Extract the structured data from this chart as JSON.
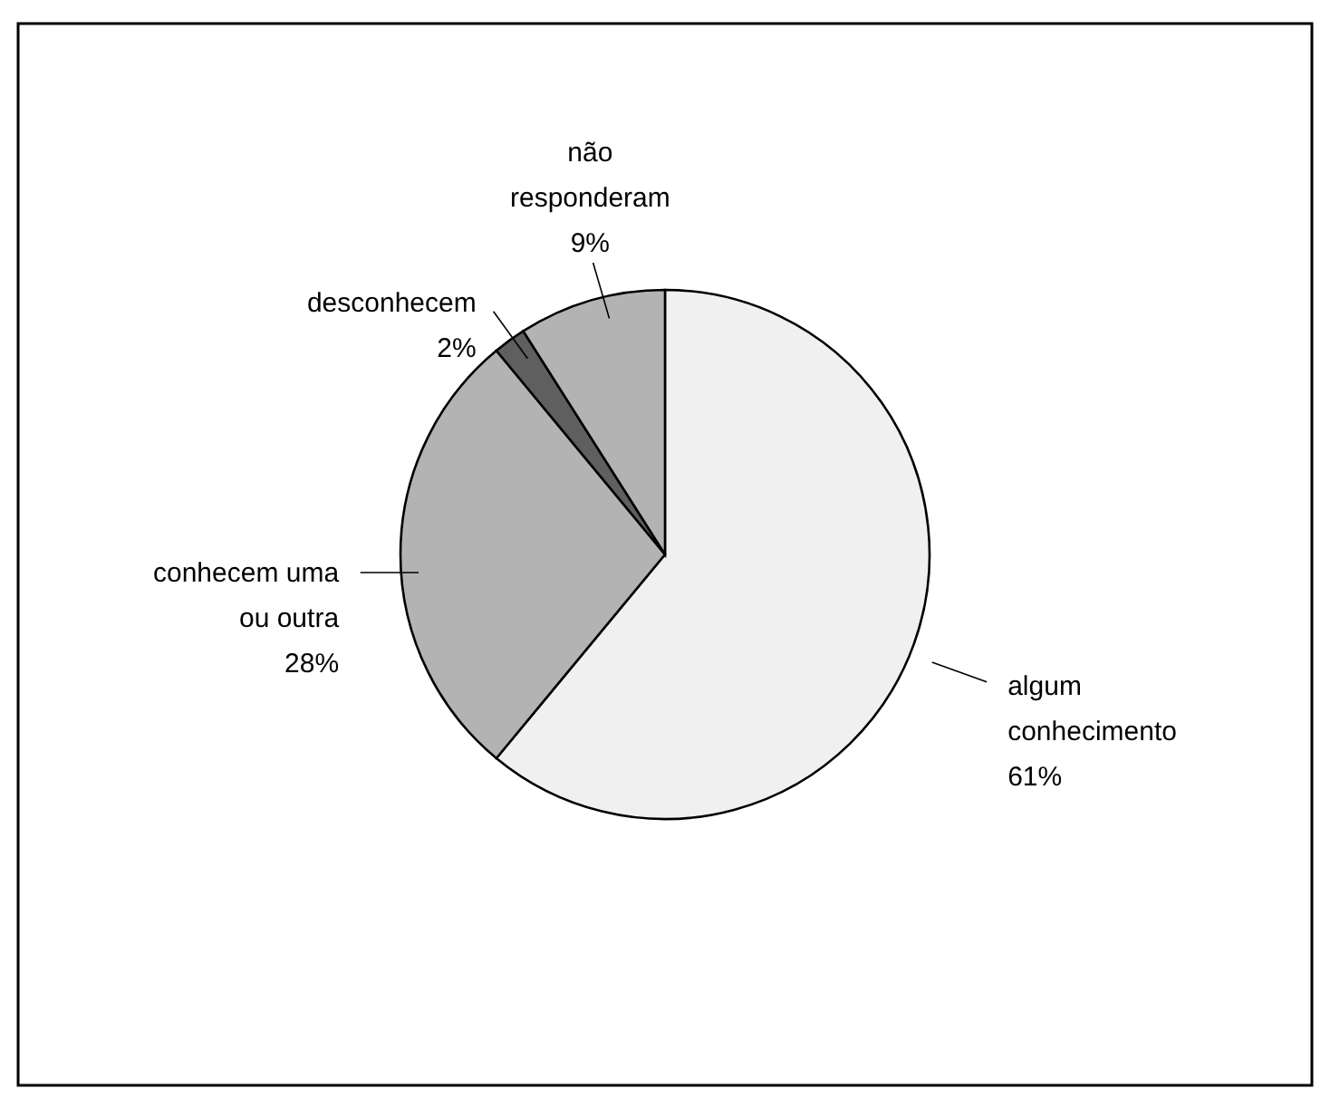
{
  "chart_data": {
    "type": "pie",
    "categories": [
      "algum conhecimento",
      "conhecem uma ou outra",
      "desconhecem",
      "não responderam"
    ],
    "values": [
      61,
      28,
      2,
      9
    ],
    "value_labels": [
      "61%",
      "28%",
      "2%",
      "9%"
    ],
    "colors": [
      "#f0f0f0",
      "#b3b3b3",
      "#5f5f5f",
      "#b3b3b3"
    ]
  }
}
